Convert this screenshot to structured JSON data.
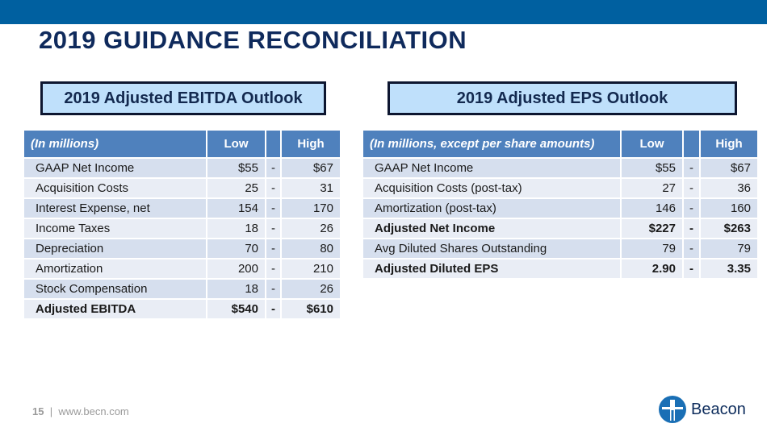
{
  "title": "2019 GUIDANCE RECONCILIATION",
  "ebitda": {
    "heading": "2019 Adjusted EBITDA Outlook",
    "columns": [
      "(In millions)",
      "Low",
      "",
      "High"
    ],
    "rows": [
      {
        "label": "GAAP Net Income",
        "low": "$55",
        "sep": "-",
        "high": "$67"
      },
      {
        "label": "Acquisition Costs",
        "low": "25",
        "sep": "-",
        "high": "31"
      },
      {
        "label": "Interest Expense, net",
        "low": "154",
        "sep": "-",
        "high": "170"
      },
      {
        "label": "Income Taxes",
        "low": "18",
        "sep": "-",
        "high": "26"
      },
      {
        "label": "Depreciation",
        "low": "70",
        "sep": "-",
        "high": "80"
      },
      {
        "label": "Amortization",
        "low": "200",
        "sep": "-",
        "high": "210"
      },
      {
        "label": "Stock Compensation",
        "low": "18",
        "sep": "-",
        "high": "26"
      },
      {
        "label": "Adjusted EBITDA",
        "low": "$540",
        "sep": "-",
        "high": "$610",
        "bold": true
      }
    ]
  },
  "eps": {
    "heading": "2019 Adjusted EPS Outlook",
    "columns": [
      "(In millions, except per share amounts)",
      "Low",
      "",
      "High"
    ],
    "rows": [
      {
        "label": "GAAP Net Income",
        "low": "$55",
        "sep": "-",
        "high": "$67"
      },
      {
        "label": "Acquisition Costs (post-tax)",
        "low": "27",
        "sep": "-",
        "high": "36"
      },
      {
        "label": "Amortization (post-tax)",
        "low": "146",
        "sep": "-",
        "high": "160"
      },
      {
        "label": "Adjusted Net Income",
        "low": "$227",
        "sep": "-",
        "high": "$263",
        "bold": true
      },
      {
        "label": "Avg Diluted Shares Outstanding",
        "low": "79",
        "sep": "-",
        "high": "79"
      },
      {
        "label": "Adjusted Diluted EPS",
        "low": "2.90",
        "sep": "-",
        "high": "3.35",
        "bold": true
      }
    ]
  },
  "footer": {
    "page": "15",
    "separator": "|",
    "url": "www.becn.com"
  },
  "logo": {
    "name": "Beacon"
  }
}
